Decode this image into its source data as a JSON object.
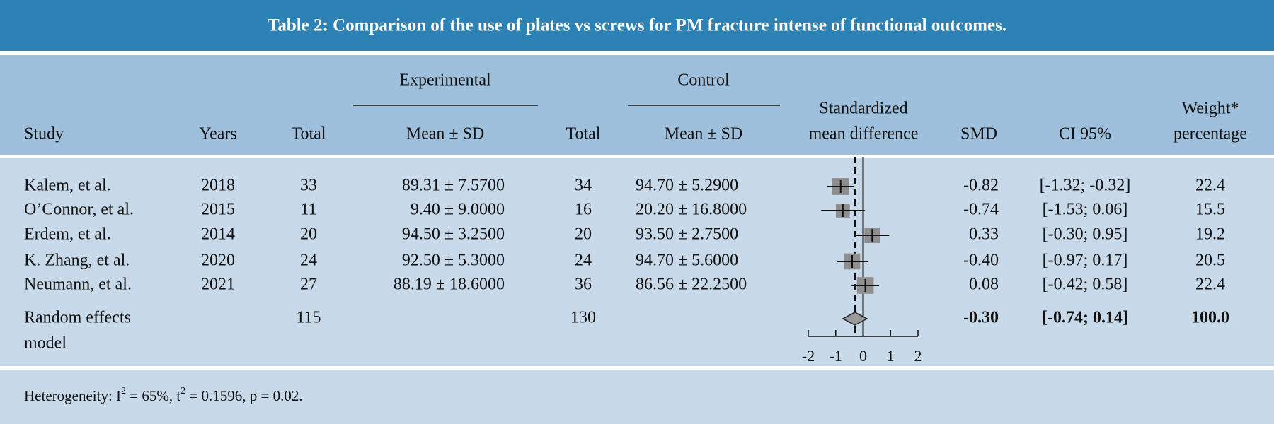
{
  "title": "Table 2: Comparison of the use of plates vs screws for PM fracture intense of functional outcomes.",
  "table": {
    "group_headers": [
      "Experimental",
      "Control"
    ],
    "columns": [
      "Study",
      "Years",
      "Total",
      "Mean ± SD",
      "Total",
      "Mean ± SD",
      [
        "Standardized",
        "mean difference"
      ],
      "SMD",
      "CI 95%",
      [
        "Weight*",
        "percentage"
      ]
    ],
    "rows": [
      [
        "Kalem, et al.",
        "2018",
        "33",
        "89.31 ± 7.5700",
        "34",
        "94.70 ± 5.2900",
        "-0.82",
        "[-1.32; -0.32]",
        "22.4"
      ],
      [
        "O’Connor, et al.",
        "2015",
        "11",
        "9.40 ± 9.0000",
        "16",
        "20.20 ± 16.8000",
        "-0.74",
        "[-1.53; 0.06]",
        "15.5"
      ],
      [
        "Erdem, et al.",
        "2014",
        "20",
        "94.50 ± 3.2500",
        "20",
        "93.50 ± 2.7500",
        "0.33",
        "[-0.30; 0.95]",
        "19.2"
      ],
      [
        "K. Zhang, et al.",
        "2020",
        "24",
        "92.50 ± 5.3000",
        "24",
        "94.70 ± 5.6000",
        "-0.40",
        "[-0.97; 0.17]",
        "20.5"
      ],
      [
        "Neumann, et al.",
        "2021",
        "27",
        "88.19 ± 18.6000",
        "36",
        "86.56 ± 22.2500",
        "0.08",
        "[-0.42; 0.58]",
        "22.4"
      ]
    ],
    "summary": {
      "study": [
        "Random effects",
        "model"
      ],
      "total_experimental": "115",
      "total_control": "130",
      "smd": "-0.30",
      "ci": "[-0.74; 0.14]",
      "weight": "100.0"
    }
  },
  "forest": {
    "xlim": [
      -2,
      2
    ],
    "xticks": [
      -2,
      -1,
      0,
      1,
      2
    ],
    "studies": [
      {
        "smd": -0.82,
        "ci": [
          -1.32,
          -0.32
        ],
        "weight": 22.4
      },
      {
        "smd": -0.74,
        "ci": [
          -1.53,
          0.06
        ],
        "weight": 15.5
      },
      {
        "smd": 0.33,
        "ci": [
          -0.3,
          0.95
        ],
        "weight": 19.2
      },
      {
        "smd": -0.4,
        "ci": [
          -0.97,
          0.17
        ],
        "weight": 20.5
      },
      {
        "smd": 0.08,
        "ci": [
          -0.42,
          0.58
        ],
        "weight": 22.4
      }
    ],
    "pooled": {
      "smd": -0.3,
      "ci": [
        -0.74,
        0.14
      ]
    }
  },
  "footer": [
    "Heterogeneity: I",
    "2",
    " = 65%, t",
    "2",
    " = 0.1596, p = 0.02."
  ]
}
